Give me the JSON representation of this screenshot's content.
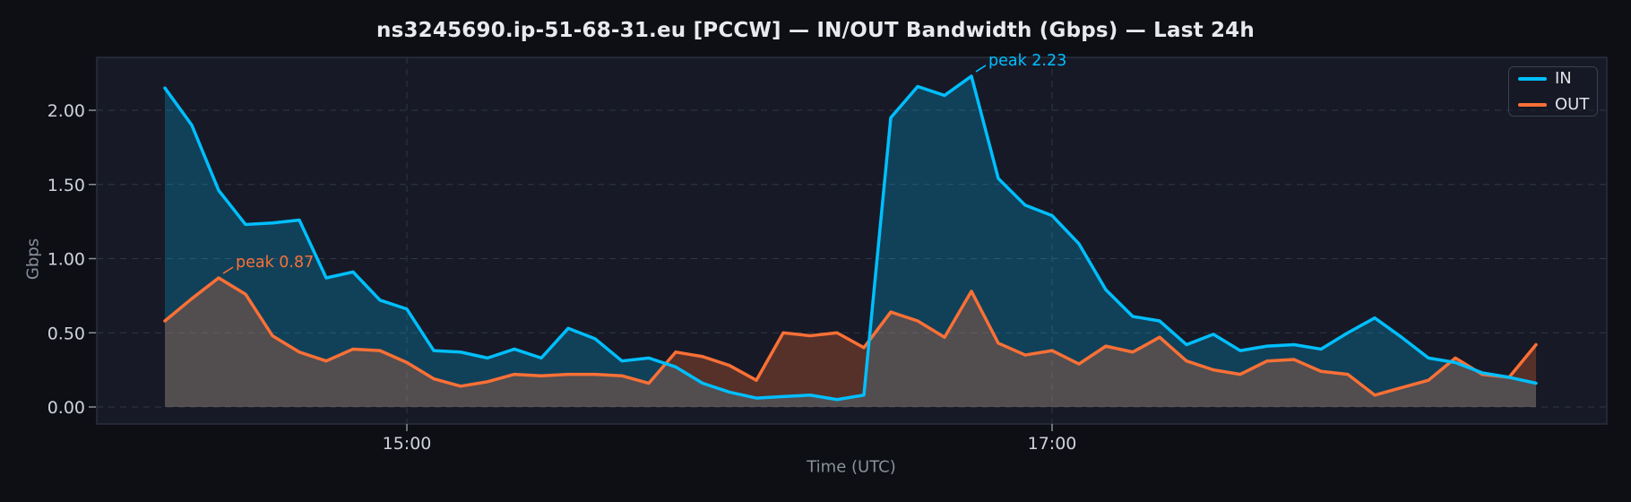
{
  "title": "ns3245690.ip-51-68-31.eu [PCCW] — IN/OUT Bandwidth (Gbps) — Last 24h",
  "legend": {
    "items": [
      {
        "label": "IN",
        "color": "#00bfff"
      },
      {
        "label": "OUT",
        "color": "#fa7036"
      }
    ]
  },
  "chart_data": {
    "type": "line",
    "title": "ns3245690.ip-51-68-31.eu [PCCW] — IN/OUT Bandwidth (Gbps) — Last 24h",
    "xlabel": "Time (UTC)",
    "ylabel": "Gbps",
    "x": [
      "14:15",
      "14:20",
      "14:25",
      "14:30",
      "14:35",
      "14:40",
      "14:45",
      "14:50",
      "14:55",
      "15:00",
      "15:05",
      "15:10",
      "15:15",
      "15:20",
      "15:25",
      "15:30",
      "15:35",
      "15:40",
      "15:45",
      "15:50",
      "15:55",
      "16:00",
      "16:05",
      "16:10",
      "16:15",
      "16:20",
      "16:25",
      "16:30",
      "16:35",
      "16:40",
      "16:45",
      "16:50",
      "16:55",
      "17:00",
      "17:05",
      "17:10",
      "17:15",
      "17:20",
      "17:25",
      "17:30",
      "17:35",
      "17:40",
      "17:45",
      "17:50",
      "17:55",
      "18:00",
      "18:05",
      "18:10",
      "18:15",
      "18:20",
      "18:25",
      "18:30"
    ],
    "series": [
      {
        "name": "IN",
        "color": "#00bfff",
        "values": [
          2.15,
          1.9,
          1.46,
          1.23,
          1.24,
          1.26,
          0.87,
          0.91,
          0.72,
          0.66,
          0.38,
          0.37,
          0.33,
          0.39,
          0.33,
          0.53,
          0.46,
          0.31,
          0.33,
          0.27,
          0.16,
          0.1,
          0.06,
          0.07,
          0.08,
          0.05,
          0.08,
          1.95,
          2.16,
          2.1,
          2.23,
          1.54,
          1.36,
          1.29,
          1.1,
          0.79,
          0.61,
          0.58,
          0.42,
          0.49,
          0.38,
          0.41,
          0.42,
          0.39,
          0.5,
          0.6,
          0.47,
          0.33,
          0.3,
          0.23,
          0.2,
          0.16
        ]
      },
      {
        "name": "OUT",
        "color": "#fa7036",
        "values": [
          0.58,
          0.73,
          0.87,
          0.76,
          0.48,
          0.37,
          0.31,
          0.39,
          0.38,
          0.3,
          0.19,
          0.14,
          0.17,
          0.22,
          0.21,
          0.22,
          0.22,
          0.21,
          0.16,
          0.37,
          0.34,
          0.28,
          0.18,
          0.5,
          0.48,
          0.5,
          0.4,
          0.64,
          0.58,
          0.47,
          0.78,
          0.43,
          0.35,
          0.38,
          0.29,
          0.41,
          0.37,
          0.47,
          0.31,
          0.25,
          0.22,
          0.31,
          0.32,
          0.24,
          0.22,
          0.08,
          0.13,
          0.18,
          0.33,
          0.22,
          0.2,
          0.42
        ]
      }
    ],
    "ylim": [
      0,
      2.36
    ],
    "yticks": {
      "values": [
        0,
        0.5,
        1.0,
        1.5,
        2.0
      ],
      "labels": [
        "0.00",
        "0.50",
        "1.00",
        "1.50",
        "2.00"
      ]
    },
    "xticks": {
      "indices": [
        9,
        33
      ],
      "labels": [
        "15:00",
        "17:00"
      ]
    },
    "grid": true,
    "area_fill": true,
    "legend_position": "top-right",
    "annotations": [
      {
        "series": "IN",
        "label": "peak 2.23",
        "value": 2.23,
        "index": 30,
        "time": "16:45"
      },
      {
        "series": "OUT",
        "label": "peak 0.87",
        "value": 0.87,
        "index": 2,
        "time": "14:25"
      }
    ]
  }
}
